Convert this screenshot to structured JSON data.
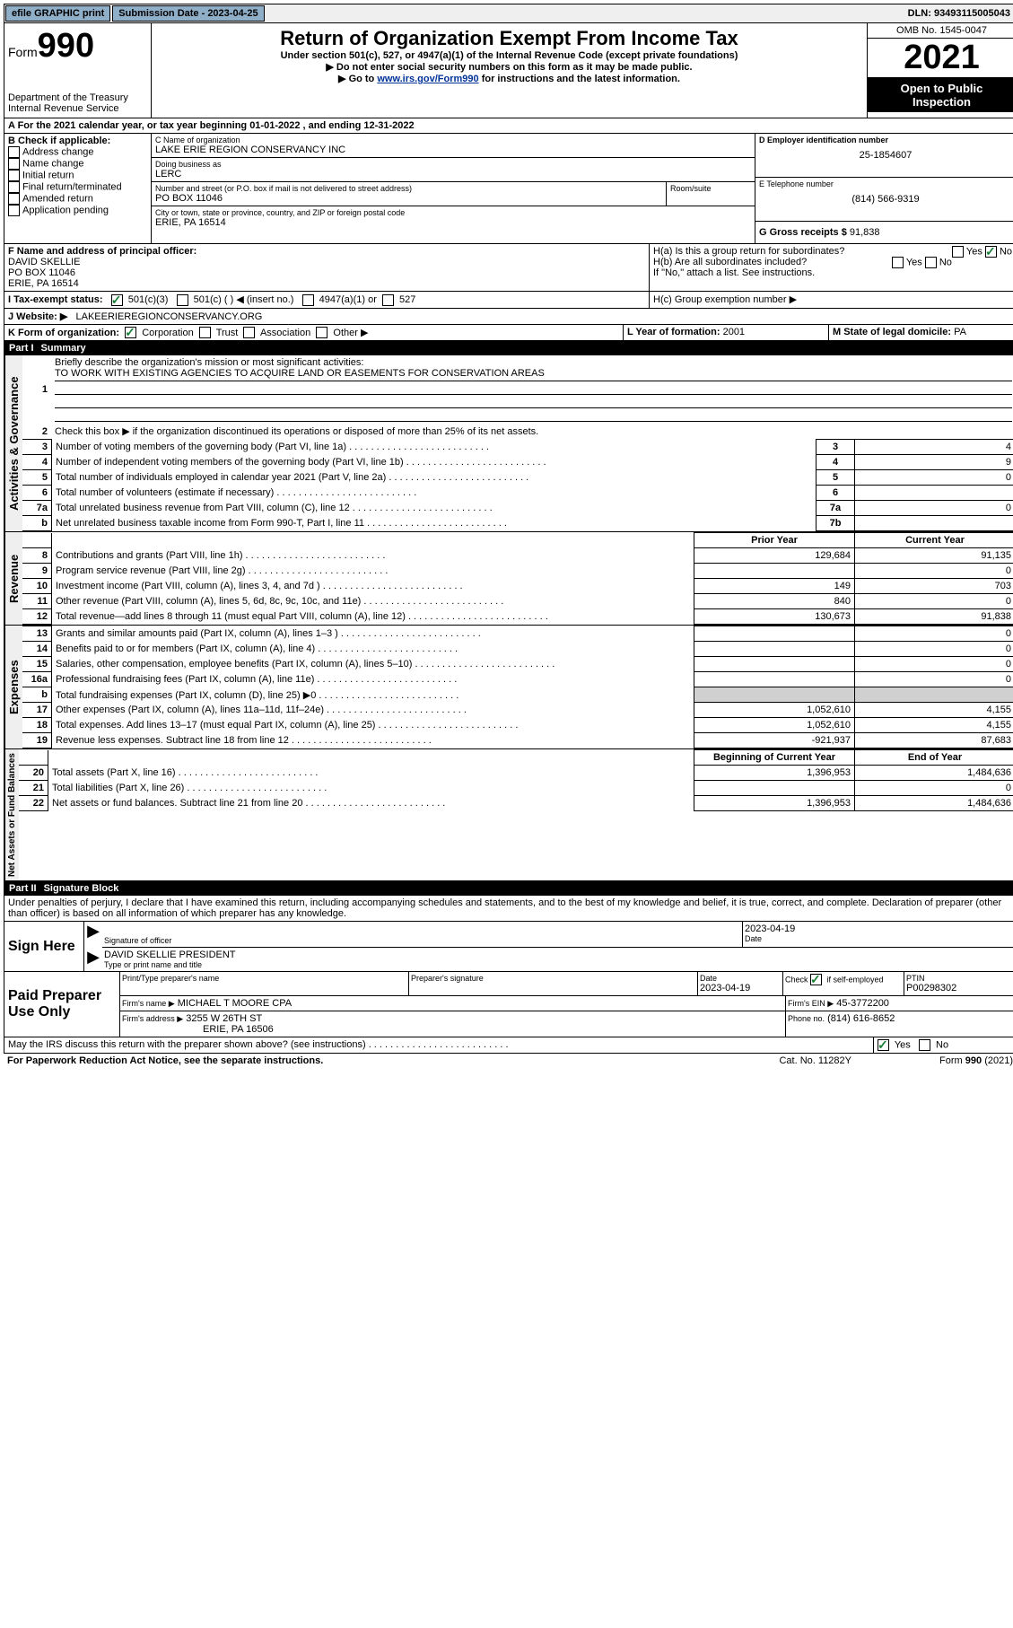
{
  "topbar": {
    "efile": "efile GRAPHIC print",
    "submission_label": "Submission Date - 2023-04-25",
    "dln": "DLN: 93493115005043"
  },
  "header": {
    "form_label": "Form",
    "form_no": "990",
    "dept": "Department of the Treasury",
    "irs": "Internal Revenue Service",
    "title": "Return of Organization Exempt From Income Tax",
    "sub1": "Under section 501(c), 527, or 4947(a)(1) of the Internal Revenue Code (except private foundations)",
    "sub2": "▶ Do not enter social security numbers on this form as it may be made public.",
    "sub3_pre": "▶ Go to ",
    "sub3_link": "www.irs.gov/Form990",
    "sub3_post": " for instructions and the latest information.",
    "omb": "OMB No. 1545-0047",
    "year": "2021",
    "open": "Open to Public Inspection"
  },
  "period": {
    "a": "A For the 2021 calendar year, or tax year beginning 01-01-2022    , and ending 12-31-2022"
  },
  "boxB": {
    "label": "B Check if applicable:",
    "items": [
      "Address change",
      "Name change",
      "Initial return",
      "Final return/terminated",
      "Amended return",
      "Application pending"
    ]
  },
  "boxC": {
    "name_label": "C Name of organization",
    "name": "LAKE ERIE REGION CONSERVANCY INC",
    "dba_label": "Doing business as",
    "dba": "LERC",
    "addr_label": "Number and street (or P.O. box if mail is not delivered to street address)",
    "room_label": "Room/suite",
    "addr": "PO BOX 11046",
    "city_label": "City or town, state or province, country, and ZIP or foreign postal code",
    "city": "ERIE, PA  16514"
  },
  "boxD": {
    "label": "D Employer identification number",
    "val": "25-1854607"
  },
  "boxE": {
    "label": "E Telephone number",
    "val": "(814) 566-9319"
  },
  "boxG": {
    "label": "G Gross receipts $",
    "val": "91,838"
  },
  "boxF": {
    "label": "F Name and address of principal officer:",
    "name": "DAVID SKELLIE",
    "addr1": "PO BOX 11046",
    "addr2": "ERIE, PA  16514"
  },
  "boxH": {
    "ha": "H(a)  Is this a group return for subordinates?",
    "hb": "H(b)  Are all subordinates included?",
    "hb_note": "If \"No,\" attach a list. See instructions.",
    "hc": "H(c)  Group exemption number ▶",
    "yes": "Yes",
    "no": "No"
  },
  "boxI": {
    "label": "I    Tax-exempt status:",
    "o1": "501(c)(3)",
    "o2": "501(c) (  ) ◀ (insert no.)",
    "o3": "4947(a)(1) or",
    "o4": "527"
  },
  "boxJ": {
    "label": "J    Website: ▶",
    "val": "LAKEERIEREGIONCONSERVANCY.ORG"
  },
  "boxK": {
    "label": "K Form of organization:",
    "o1": "Corporation",
    "o2": "Trust",
    "o3": "Association",
    "o4": "Other ▶"
  },
  "boxL": {
    "label": "L Year of formation:",
    "val": "2001"
  },
  "boxM": {
    "label": "M State of legal domicile:",
    "val": "PA"
  },
  "part1": {
    "hdr_part": "Part I",
    "hdr_title": "Summary",
    "vlabels": {
      "gov": "Activities & Governance",
      "rev": "Revenue",
      "exp": "Expenses",
      "net": "Net Assets or Fund Balances"
    },
    "line1_label": "Briefly describe the organization's mission or most significant activities:",
    "line1_text": "TO WORK WITH EXISTING AGENCIES TO ACQUIRE LAND OR EASEMENTS FOR CONSERVATION AREAS",
    "line2": "Check this box ▶     if the organization discontinued its operations or disposed of more than 25% of its net assets.",
    "lines_gov": [
      {
        "n": "3",
        "t": "Number of voting members of the governing body (Part VI, line 1a)",
        "box": "3",
        "v": "4"
      },
      {
        "n": "4",
        "t": "Number of independent voting members of the governing body (Part VI, line 1b)",
        "box": "4",
        "v": "9"
      },
      {
        "n": "5",
        "t": "Total number of individuals employed in calendar year 2021 (Part V, line 2a)",
        "box": "5",
        "v": "0"
      },
      {
        "n": "6",
        "t": "Total number of volunteers (estimate if necessary)",
        "box": "6",
        "v": ""
      },
      {
        "n": "7a",
        "t": "Total unrelated business revenue from Part VIII, column (C), line 12",
        "box": "7a",
        "v": "0"
      },
      {
        "n": "b",
        "t": "Net unrelated business taxable income from Form 990-T, Part I, line 11",
        "box": "7b",
        "v": ""
      }
    ],
    "cols": {
      "prior": "Prior Year",
      "current": "Current Year"
    },
    "lines_rev": [
      {
        "n": "8",
        "t": "Contributions and grants (Part VIII, line 1h)",
        "p": "129,684",
        "c": "91,135"
      },
      {
        "n": "9",
        "t": "Program service revenue (Part VIII, line 2g)",
        "p": "",
        "c": "0"
      },
      {
        "n": "10",
        "t": "Investment income (Part VIII, column (A), lines 3, 4, and 7d )",
        "p": "149",
        "c": "703"
      },
      {
        "n": "11",
        "t": "Other revenue (Part VIII, column (A), lines 5, 6d, 8c, 9c, 10c, and 11e)",
        "p": "840",
        "c": "0"
      },
      {
        "n": "12",
        "t": "Total revenue—add lines 8 through 11 (must equal Part VIII, column (A), line 12)",
        "p": "130,673",
        "c": "91,838"
      }
    ],
    "lines_exp": [
      {
        "n": "13",
        "t": "Grants and similar amounts paid (Part IX, column (A), lines 1–3 )",
        "p": "",
        "c": "0"
      },
      {
        "n": "14",
        "t": "Benefits paid to or for members (Part IX, column (A), line 4)",
        "p": "",
        "c": "0"
      },
      {
        "n": "15",
        "t": "Salaries, other compensation, employee benefits (Part IX, column (A), lines 5–10)",
        "p": "",
        "c": "0"
      },
      {
        "n": "16a",
        "t": "Professional fundraising fees (Part IX, column (A), line 11e)",
        "p": "",
        "c": "0"
      },
      {
        "n": "b",
        "t": "Total fundraising expenses (Part IX, column (D), line 25) ▶0",
        "p": "grey",
        "c": "grey"
      },
      {
        "n": "17",
        "t": "Other expenses (Part IX, column (A), lines 11a–11d, 11f–24e)",
        "p": "1,052,610",
        "c": "4,155"
      },
      {
        "n": "18",
        "t": "Total expenses. Add lines 13–17 (must equal Part IX, column (A), line 25)",
        "p": "1,052,610",
        "c": "4,155"
      },
      {
        "n": "19",
        "t": "Revenue less expenses. Subtract line 18 from line 12",
        "p": "-921,937",
        "c": "87,683"
      }
    ],
    "cols2": {
      "beg": "Beginning of Current Year",
      "end": "End of Year"
    },
    "lines_net": [
      {
        "n": "20",
        "t": "Total assets (Part X, line 16)",
        "p": "1,396,953",
        "c": "1,484,636"
      },
      {
        "n": "21",
        "t": "Total liabilities (Part X, line 26)",
        "p": "",
        "c": "0"
      },
      {
        "n": "22",
        "t": "Net assets or fund balances. Subtract line 21 from line 20",
        "p": "1,396,953",
        "c": "1,484,636"
      }
    ]
  },
  "part2": {
    "hdr_part": "Part II",
    "hdr_title": "Signature Block",
    "decl": "Under penalties of perjury, I declare that I have examined this return, including accompanying schedules and statements, and to the best of my knowledge and belief, it is true, correct, and complete. Declaration of preparer (other than officer) is based on all information of which preparer has any knowledge.",
    "sign_here": "Sign Here",
    "sig_officer": "Signature of officer",
    "date_label": "Date",
    "sig_date": "2023-04-19",
    "officer_name": "DAVID SKELLIE  PRESIDENT",
    "name_title": "Type or print name and title",
    "paid": "Paid Preparer Use Only",
    "pt_name_label": "Print/Type preparer's name",
    "pt_sig_label": "Preparer's signature",
    "pt_date_label": "Date",
    "pt_date": "2023-04-19",
    "pt_check_label": "Check       if self-employed",
    "ptin_label": "PTIN",
    "ptin": "P00298302",
    "firm_name_label": "Firm's name    ▶",
    "firm_name": "MICHAEL T MOORE CPA",
    "firm_ein_label": "Firm's EIN ▶",
    "firm_ein": "45-3772200",
    "firm_addr_label": "Firm's address ▶",
    "firm_addr1": "3255 W 26TH ST",
    "firm_addr2": "ERIE, PA  16506",
    "phone_label": "Phone no.",
    "phone": "(814) 616-8652",
    "discuss": "May the IRS discuss this return with the preparer shown above? (see instructions)",
    "yes": "Yes",
    "no": "No"
  },
  "footer": {
    "left": "For Paperwork Reduction Act Notice, see the separate instructions.",
    "mid": "Cat. No. 11282Y",
    "right": "Form 990 (2021)"
  }
}
